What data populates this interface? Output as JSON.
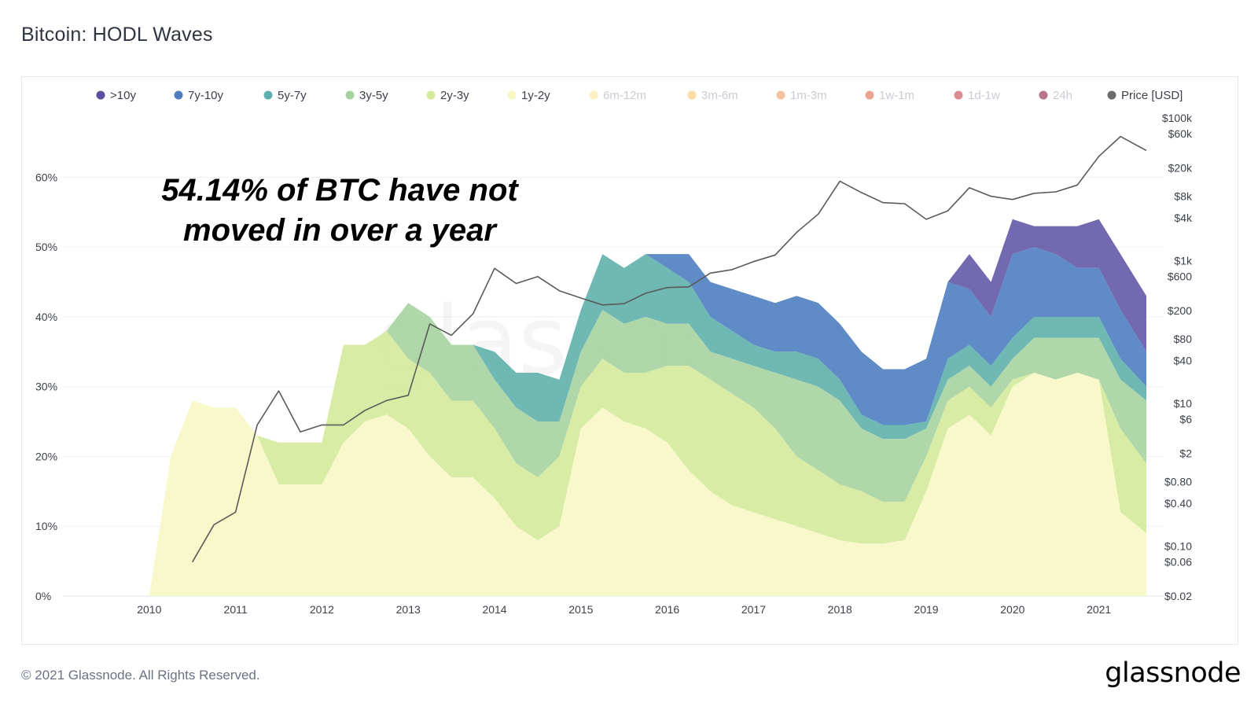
{
  "header": {
    "title": "Bitcoin: HODL Waves"
  },
  "footer": {
    "copyright": "© 2021 Glassnode. All Rights Reserved.",
    "brand": "glassnode"
  },
  "annotation": {
    "line1": "54.14% of BTC have not",
    "line2": "moved in over a year"
  },
  "watermark": "glassnode",
  "chart_data": {
    "type": "area",
    "title": "Bitcoin: HODL Waves",
    "legend_position": "top",
    "legend": [
      {
        "name": ">10y",
        "color": "#5a4fa2",
        "active": true
      },
      {
        "name": "7y-10y",
        "color": "#4e7ec0",
        "active": true
      },
      {
        "name": "5y-7y",
        "color": "#5fb0ac",
        "active": true
      },
      {
        "name": "3y-5y",
        "color": "#a6d3a0",
        "active": true
      },
      {
        "name": "2y-3y",
        "color": "#d4ea9c",
        "active": true
      },
      {
        "name": "1y-2y",
        "color": "#f7f7c4",
        "active": true
      },
      {
        "name": "6m-12m",
        "color": "#fbe89a",
        "active": false
      },
      {
        "name": "3m-6m",
        "color": "#f6c46b",
        "active": false
      },
      {
        "name": "1m-3m",
        "color": "#f09a5a",
        "active": false
      },
      {
        "name": "1w-1m",
        "color": "#e0674a",
        "active": false
      },
      {
        "name": "1d-1w",
        "color": "#c7404d",
        "active": false
      },
      {
        "name": "24h",
        "color": "#8b1a3e",
        "active": false
      },
      {
        "name": "Price [USD]",
        "color": "#6b6b6b",
        "active": true
      }
    ],
    "x_ticks": [
      "2010",
      "2011",
      "2012",
      "2013",
      "2014",
      "2015",
      "2016",
      "2017",
      "2018",
      "2019",
      "2020",
      "2021"
    ],
    "y_left_ticks": [
      "0%",
      "10%",
      "20%",
      "30%",
      "40%",
      "50%",
      "60%"
    ],
    "y_left_lim": [
      0,
      60
    ],
    "y_right_ticks": [
      "$0.02",
      "$0.06",
      "$0.10",
      "$0.40",
      "$0.80",
      "$2",
      "$6",
      "$10",
      "$40",
      "$80",
      "$200",
      "$600",
      "$1k",
      "$4k",
      "$8k",
      "$20k",
      "$60k",
      "$100k"
    ],
    "y_right_scale": "log",
    "x": [
      2010.0,
      2010.25,
      2010.5,
      2010.75,
      2011.0,
      2011.25,
      2011.5,
      2011.75,
      2012.0,
      2012.25,
      2012.5,
      2012.75,
      2013.0,
      2013.25,
      2013.5,
      2013.75,
      2014.0,
      2014.25,
      2014.5,
      2014.75,
      2015.0,
      2015.25,
      2015.5,
      2015.75,
      2016.0,
      2016.25,
      2016.5,
      2016.75,
      2017.0,
      2017.25,
      2017.5,
      2017.75,
      2018.0,
      2018.25,
      2018.5,
      2018.75,
      2019.0,
      2019.25,
      2019.5,
      2019.75,
      2020.0,
      2020.25,
      2020.5,
      2020.75,
      2021.0,
      2021.25,
      2021.55
    ],
    "series": [
      {
        "name": "1y-2y",
        "values": [
          0,
          20,
          28,
          27,
          27,
          23,
          16,
          16,
          16,
          22,
          25,
          26,
          24,
          20,
          17,
          17,
          14,
          10,
          8,
          10,
          24,
          27,
          25,
          24,
          22,
          18,
          15,
          13,
          12,
          11,
          10,
          9,
          8,
          7.5,
          7.5,
          8,
          15,
          24,
          26,
          23,
          30,
          32,
          31,
          32,
          31,
          12,
          9
        ]
      },
      {
        "name": "2y-3y",
        "values": [
          0,
          0,
          0,
          0,
          0,
          0,
          6,
          6,
          6,
          14,
          11,
          12,
          10,
          12,
          11,
          11,
          10,
          9,
          9,
          10,
          6,
          7,
          7,
          8,
          11,
          15,
          16,
          16,
          15,
          13,
          10,
          9,
          8,
          7.5,
          6,
          5.5,
          5,
          4,
          4,
          4,
          1,
          0,
          0,
          0,
          0,
          12,
          10
        ]
      },
      {
        "name": "3y-5y",
        "values": [
          0,
          0,
          0,
          0,
          0,
          0,
          0,
          0,
          0,
          0,
          0,
          0,
          8,
          8,
          8,
          8,
          7,
          8,
          8,
          5,
          5,
          7,
          7,
          8,
          6,
          6,
          4,
          5,
          6,
          8,
          11,
          12,
          12,
          9,
          9,
          9,
          4,
          3,
          3,
          3,
          3,
          5,
          6,
          5,
          6,
          7,
          9
        ]
      },
      {
        "name": "5y-7y",
        "values": [
          0,
          0,
          0,
          0,
          0,
          0,
          0,
          0,
          0,
          0,
          0,
          0,
          0,
          0,
          0,
          0,
          4,
          5,
          7,
          6,
          6,
          8,
          8,
          9,
          8,
          6,
          5,
          4,
          3,
          3,
          4,
          4,
          3,
          2,
          2,
          2,
          1,
          3,
          3,
          3,
          3,
          3,
          3,
          3,
          3,
          3,
          2
        ]
      },
      {
        "name": "7y-10y",
        "values": [
          0,
          0,
          0,
          0,
          0,
          0,
          0,
          0,
          0,
          0,
          0,
          0,
          0,
          0,
          0,
          0,
          0,
          0,
          0,
          0,
          0,
          0,
          0,
          0,
          2,
          4,
          5,
          6,
          7,
          7,
          8,
          8,
          8,
          9,
          8,
          8,
          9,
          11,
          8,
          7,
          12,
          10,
          9,
          7,
          7,
          7,
          5
        ]
      },
      {
        "name": ">10y",
        "values": [
          0,
          0,
          0,
          0,
          0,
          0,
          0,
          0,
          0,
          0,
          0,
          0,
          0,
          0,
          0,
          0,
          0,
          0,
          0,
          0,
          0,
          0,
          0,
          0,
          0,
          0,
          0,
          0,
          0,
          0,
          0,
          0,
          0,
          0,
          0,
          0,
          0,
          0,
          5,
          5,
          5,
          3,
          4,
          6,
          7,
          8,
          8
        ]
      },
      {
        "name": "Price [USD]",
        "values": [
          null,
          null,
          0.06,
          0.2,
          0.3,
          5,
          15,
          4,
          5,
          5,
          8,
          11,
          13,
          130,
          90,
          180,
          780,
          480,
          600,
          380,
          300,
          240,
          250,
          350,
          420,
          430,
          670,
          750,
          970,
          1200,
          2500,
          4500,
          13000,
          9000,
          6500,
          6300,
          3800,
          5000,
          10500,
          8000,
          7200,
          8800,
          9200,
          11500,
          29000,
          55000,
          35000
        ]
      }
    ]
  }
}
